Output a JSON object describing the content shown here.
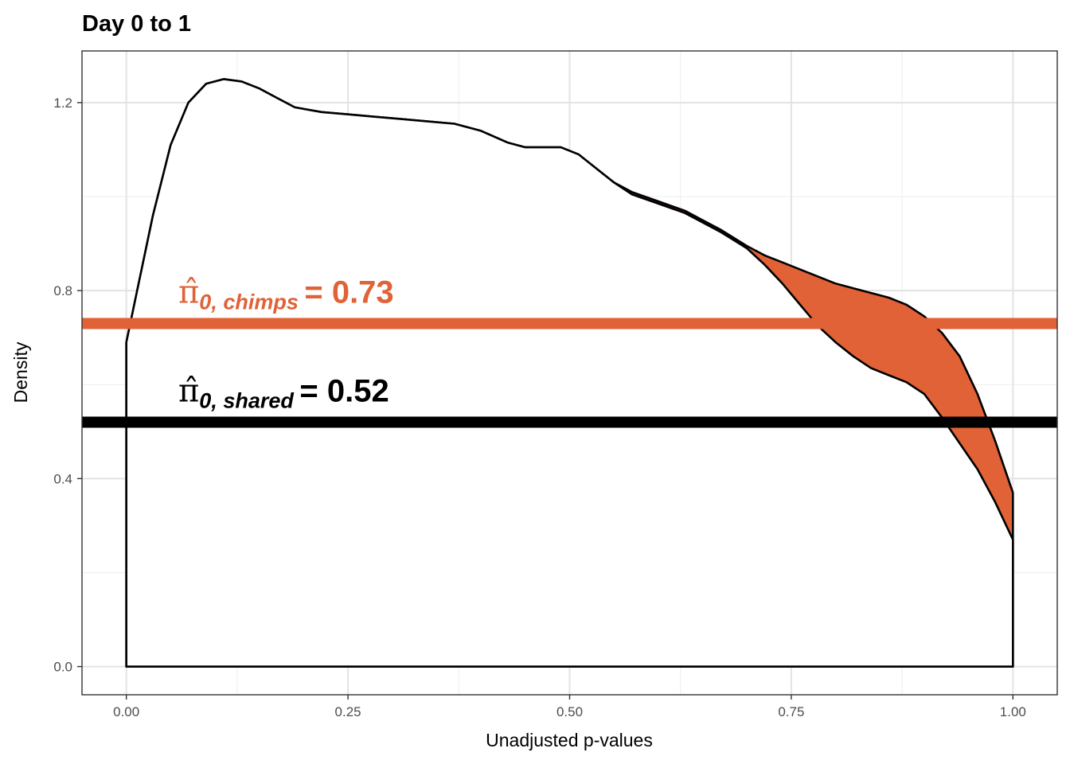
{
  "chart_data": {
    "type": "area",
    "title": "Day 0 to 1",
    "xlabel": "Unadjusted p-values",
    "ylabel": "Density",
    "xlim": [
      -0.05,
      1.05
    ],
    "ylim": [
      -0.06,
      1.31
    ],
    "x_ticks": [
      "0.00",
      "0.25",
      "0.50",
      "0.75",
      "1.00"
    ],
    "x_tick_values": [
      0,
      0.25,
      0.5,
      0.75,
      1.0
    ],
    "y_ticks": [
      "0.0",
      "0.4",
      "0.8",
      "1.2"
    ],
    "y_tick_values": [
      0,
      0.4,
      0.8,
      1.2
    ],
    "grid": true,
    "series": [
      {
        "color": "#000000",
        "x": [
          0.0,
          0.01,
          0.03,
          0.05,
          0.07,
          0.09,
          0.11,
          0.13,
          0.15,
          0.17,
          0.19,
          0.22,
          0.25,
          0.28,
          0.31,
          0.34,
          0.37,
          0.4,
          0.43,
          0.45,
          0.47,
          0.49,
          0.51,
          0.53,
          0.55,
          0.57,
          0.6,
          0.63,
          0.65,
          0.67,
          0.7,
          0.72,
          0.74,
          0.76,
          0.78,
          0.8,
          0.82,
          0.84,
          0.86,
          0.88,
          0.9,
          0.92,
          0.94,
          0.96,
          0.98,
          1.0
        ],
        "values": [
          0.69,
          0.78,
          0.96,
          1.11,
          1.2,
          1.24,
          1.25,
          1.245,
          1.23,
          1.21,
          1.19,
          1.18,
          1.175,
          1.17,
          1.165,
          1.16,
          1.155,
          1.14,
          1.115,
          1.105,
          1.105,
          1.105,
          1.09,
          1.06,
          1.03,
          1.005,
          0.985,
          0.965,
          0.945,
          0.925,
          0.89,
          0.855,
          0.815,
          0.77,
          0.725,
          0.69,
          0.66,
          0.635,
          0.62,
          0.605,
          0.58,
          0.53,
          0.475,
          0.42,
          0.35,
          0.27
        ]
      },
      {
        "color": "#e06236",
        "x": [
          0.0,
          0.01,
          0.03,
          0.05,
          0.07,
          0.09,
          0.11,
          0.13,
          0.15,
          0.17,
          0.19,
          0.22,
          0.25,
          0.28,
          0.31,
          0.34,
          0.37,
          0.4,
          0.43,
          0.45,
          0.47,
          0.49,
          0.51,
          0.53,
          0.55,
          0.57,
          0.6,
          0.63,
          0.65,
          0.67,
          0.7,
          0.72,
          0.74,
          0.76,
          0.78,
          0.8,
          0.82,
          0.84,
          0.86,
          0.88,
          0.9,
          0.92,
          0.94,
          0.96,
          0.98,
          1.0
        ],
        "values": [
          0.69,
          0.78,
          0.96,
          1.11,
          1.2,
          1.24,
          1.25,
          1.245,
          1.23,
          1.21,
          1.19,
          1.18,
          1.175,
          1.17,
          1.165,
          1.16,
          1.155,
          1.14,
          1.115,
          1.105,
          1.105,
          1.105,
          1.09,
          1.06,
          1.03,
          1.01,
          0.99,
          0.97,
          0.95,
          0.93,
          0.895,
          0.875,
          0.86,
          0.845,
          0.83,
          0.815,
          0.805,
          0.795,
          0.785,
          0.77,
          0.745,
          0.71,
          0.66,
          0.58,
          0.48,
          0.37
        ]
      }
    ],
    "hlines": [
      {
        "name": "chimps",
        "y": 0.73,
        "color": "#e06236"
      },
      {
        "name": "shared",
        "y": 0.52,
        "color": "#000000"
      }
    ],
    "annotations": [
      {
        "symbol": "π̂",
        "sub": "0, chimps",
        "eq": "= 0.73",
        "color": "#e06236"
      },
      {
        "symbol": "π̂",
        "sub": "0, shared",
        "eq": "= 0.52",
        "color": "#000000"
      }
    ]
  }
}
